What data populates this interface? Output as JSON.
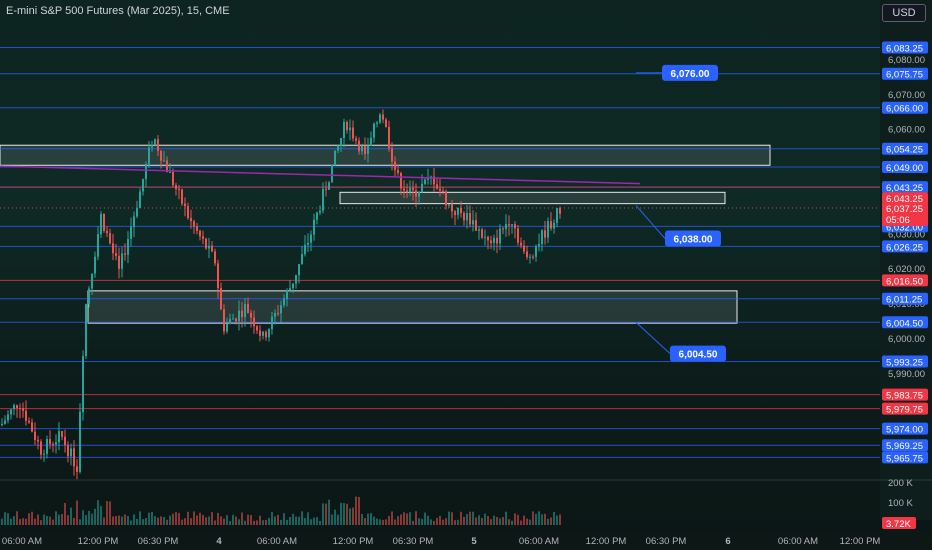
{
  "title": "E-mini S&P 500 Futures (Mar 2025), 15, CME",
  "currency_button": "USD",
  "colors": {
    "blue": "#2962ff",
    "red": "#f23645",
    "up": "#26a69a",
    "down": "#ef5350",
    "purple": "#9c27b0"
  },
  "price_axis": {
    "min": 5961,
    "max": 6090,
    "ticks": [
      "6,080.00",
      "6,070.00",
      "6,060.00",
      "6,050.00",
      "6,040.00",
      "6,030.00",
      "6,020.00",
      "6,010.00",
      "6,000.00",
      "5,990.00"
    ],
    "tick_values": [
      6080,
      6070,
      6060,
      6050,
      6040,
      6030,
      6020,
      6010,
      6000,
      5990
    ]
  },
  "horizontal_lines": [
    {
      "price": 6083.25,
      "label": "6,083.25",
      "kind": "blue"
    },
    {
      "price": 6075.75,
      "label": "6,075.75",
      "kind": "blue"
    },
    {
      "price": 6066.0,
      "label": "6,066.00",
      "kind": "blue"
    },
    {
      "price": 6054.25,
      "label": "6,054.25",
      "kind": "blue"
    },
    {
      "price": 6049.0,
      "label": "6,049.00",
      "kind": "blue"
    },
    {
      "price": 6043.25,
      "label": "6,043.25",
      "kind": "blue"
    },
    {
      "price": 6043.25,
      "label": "6,043.25",
      "kind": "red"
    },
    {
      "price": 6032.0,
      "label": "6,032.00",
      "kind": "blue"
    },
    {
      "price": 6026.25,
      "label": "6,026.25",
      "kind": "blue"
    },
    {
      "price": 6016.5,
      "label": "6,016.50",
      "kind": "red"
    },
    {
      "price": 6011.25,
      "label": "6,011.25",
      "kind": "blue"
    },
    {
      "price": 6004.5,
      "label": "6,004.50",
      "kind": "blue"
    },
    {
      "price": 5993.25,
      "label": "5,993.25",
      "kind": "blue"
    },
    {
      "price": 5983.75,
      "label": "5,983.75",
      "kind": "red"
    },
    {
      "price": 5979.75,
      "label": "5,979.75",
      "kind": "red"
    },
    {
      "price": 5974.0,
      "label": "5,974.00",
      "kind": "blue"
    },
    {
      "price": 5969.25,
      "label": "5,969.25",
      "kind": "blue"
    },
    {
      "price": 5965.75,
      "label": "5,965.75",
      "kind": "blue"
    }
  ],
  "current_price": {
    "price": 6037.25,
    "label": "6,037.25",
    "countdown": "05:06"
  },
  "callouts": [
    {
      "label": "6,076.00",
      "price": 6076.0,
      "target_price": 6076.0
    },
    {
      "label": "6,038.00",
      "price": 6028.5,
      "target_price": 6038.0
    },
    {
      "label": "6,004.50",
      "price": 5995.5,
      "target_price": 6004.5
    }
  ],
  "zones": [
    {
      "top": 6055.25,
      "bottom": 6049.5,
      "start": 0,
      "end": 770
    },
    {
      "top": 6041.75,
      "bottom": 6038.5,
      "start": 340,
      "end": 725
    },
    {
      "top": 6013.5,
      "bottom": 6004.25,
      "start": 88,
      "end": 737
    }
  ],
  "trendline": {
    "start": 0,
    "start_price": 6049.25,
    "end": 640,
    "end_price": 6044.25
  },
  "volume_axis": {
    "ticks": [
      "200 K",
      "100 K"
    ],
    "current": "3.72K"
  },
  "time_axis": [
    "06:00 AM",
    "12:00 PM",
    "06:30 PM",
    "4",
    "06:00 AM",
    "12:00 PM",
    "06:30 PM",
    "5",
    "06:00 AM",
    "12:00 PM",
    "06:30 PM",
    "6",
    "06:00 AM",
    "12:00 PM"
  ]
}
